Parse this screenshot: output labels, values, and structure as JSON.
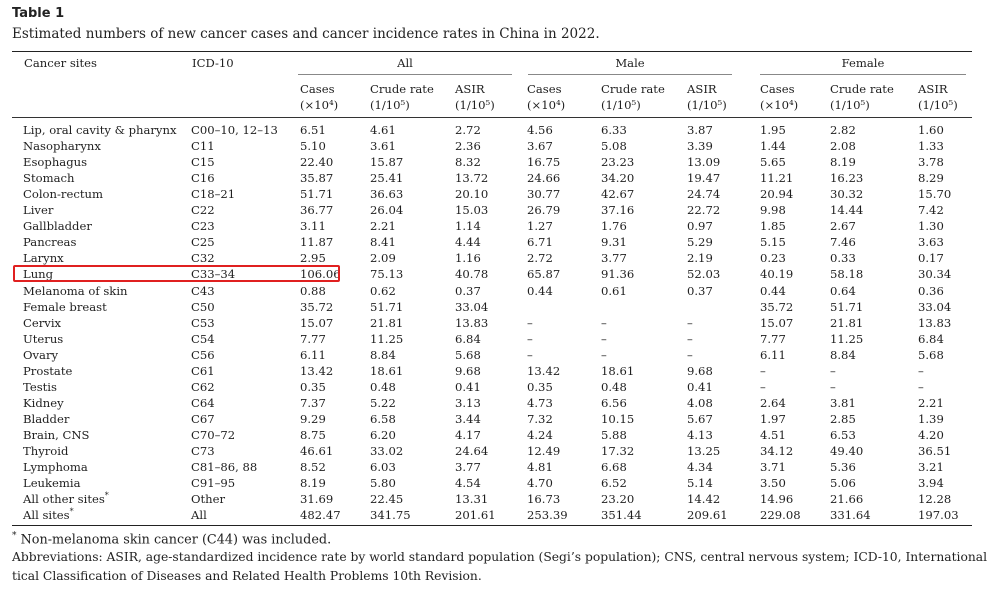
{
  "caption": {
    "label": "Table 1",
    "title": "Estimated numbers of new cancer cases and cancer incidence rates in China in 2022."
  },
  "header": {
    "sites": "Cancer sites",
    "icd": "ICD-10",
    "groups": [
      "All",
      "Male",
      "Female"
    ],
    "sub": [
      {
        "l1": "Cases",
        "l2": "(×10⁴)"
      },
      {
        "l1": "Crude rate",
        "l2": "(1/10⁵)"
      },
      {
        "l1": "ASIR",
        "l2": "(1/10⁵)"
      }
    ]
  },
  "rows": [
    {
      "site": "Lip, oral cavity & pharynx",
      "icd": "C00–10, 12–13",
      "v": [
        "6.51",
        "4.61",
        "2.72",
        "4.56",
        "6.33",
        "3.87",
        "1.95",
        "2.82",
        "1.60"
      ]
    },
    {
      "site": "Nasopharynx",
      "icd": "C11",
      "v": [
        "5.10",
        "3.61",
        "2.36",
        "3.67",
        "5.08",
        "3.39",
        "1.44",
        "2.08",
        "1.33"
      ]
    },
    {
      "site": "Esophagus",
      "icd": "C15",
      "v": [
        "22.40",
        "15.87",
        "8.32",
        "16.75",
        "23.23",
        "13.09",
        "5.65",
        "8.19",
        "3.78"
      ]
    },
    {
      "site": "Stomach",
      "icd": "C16",
      "v": [
        "35.87",
        "25.41",
        "13.72",
        "24.66",
        "34.20",
        "19.47",
        "11.21",
        "16.23",
        "8.29"
      ]
    },
    {
      "site": "Colon-rectum",
      "icd": "C18–21",
      "v": [
        "51.71",
        "36.63",
        "20.10",
        "30.77",
        "42.67",
        "24.74",
        "20.94",
        "30.32",
        "15.70"
      ]
    },
    {
      "site": "Liver",
      "icd": "C22",
      "v": [
        "36.77",
        "26.04",
        "15.03",
        "26.79",
        "37.16",
        "22.72",
        "9.98",
        "14.44",
        "7.42"
      ]
    },
    {
      "site": "Gallbladder",
      "icd": "C23",
      "v": [
        "3.11",
        "2.21",
        "1.14",
        "1.27",
        "1.76",
        "0.97",
        "1.85",
        "2.67",
        "1.30"
      ]
    },
    {
      "site": "Pancreas",
      "icd": "C25",
      "v": [
        "11.87",
        "8.41",
        "4.44",
        "6.71",
        "9.31",
        "5.29",
        "5.15",
        "7.46",
        "3.63"
      ]
    },
    {
      "site": "Larynx",
      "icd": "C32",
      "v": [
        "2.95",
        "2.09",
        "1.16",
        "2.72",
        "3.77",
        "2.19",
        "0.23",
        "0.33",
        "0.17"
      ]
    },
    {
      "site": "Lung",
      "icd": "C33–34",
      "v": [
        "106.06",
        "75.13",
        "40.78",
        "65.87",
        "91.36",
        "52.03",
        "40.19",
        "58.18",
        "30.34"
      ]
    },
    {
      "site": "Melanoma of skin",
      "icd": "C43",
      "v": [
        "0.88",
        "0.62",
        "0.37",
        "0.44",
        "0.61",
        "0.37",
        "0.44",
        "0.64",
        "0.36"
      ]
    },
    {
      "site": "Female breast",
      "icd": "C50",
      "v": [
        "35.72",
        "51.71",
        "33.04",
        "",
        "",
        "",
        "35.72",
        "51.71",
        "33.04"
      ]
    },
    {
      "site": "Cervix",
      "icd": "C53",
      "v": [
        "15.07",
        "21.81",
        "13.83",
        "–",
        "–",
        "–",
        "15.07",
        "21.81",
        "13.83"
      ]
    },
    {
      "site": "Uterus",
      "icd": "C54",
      "v": [
        "7.77",
        "11.25",
        "6.84",
        "–",
        "–",
        "–",
        "7.77",
        "11.25",
        "6.84"
      ]
    },
    {
      "site": "Ovary",
      "icd": "C56",
      "v": [
        "6.11",
        "8.84",
        "5.68",
        "–",
        "–",
        "–",
        "6.11",
        "8.84",
        "5.68"
      ]
    },
    {
      "site": "Prostate",
      "icd": "C61",
      "v": [
        "13.42",
        "18.61",
        "9.68",
        "13.42",
        "18.61",
        "9.68",
        "–",
        "–",
        "–"
      ]
    },
    {
      "site": "Testis",
      "icd": "C62",
      "v": [
        "0.35",
        "0.48",
        "0.41",
        "0.35",
        "0.48",
        "0.41",
        "–",
        "–",
        "–"
      ]
    },
    {
      "site": "Kidney",
      "icd": "C64",
      "v": [
        "7.37",
        "5.22",
        "3.13",
        "4.73",
        "6.56",
        "4.08",
        "2.64",
        "3.81",
        "2.21"
      ]
    },
    {
      "site": "Bladder",
      "icd": "C67",
      "v": [
        "9.29",
        "6.58",
        "3.44",
        "7.32",
        "10.15",
        "5.67",
        "1.97",
        "2.85",
        "1.39"
      ]
    },
    {
      "site": "Brain, CNS",
      "icd": "C70–72",
      "v": [
        "8.75",
        "6.20",
        "4.17",
        "4.24",
        "5.88",
        "4.13",
        "4.51",
        "6.53",
        "4.20"
      ]
    },
    {
      "site": "Thyroid",
      "icd": "C73",
      "v": [
        "46.61",
        "33.02",
        "24.64",
        "12.49",
        "17.32",
        "13.25",
        "34.12",
        "49.40",
        "36.51"
      ]
    },
    {
      "site": "Lymphoma",
      "icd": "C81–86, 88",
      "v": [
        "8.52",
        "6.03",
        "3.77",
        "4.81",
        "6.68",
        "4.34",
        "3.71",
        "5.36",
        "3.21"
      ]
    },
    {
      "site": "Leukemia",
      "icd": "C91–95",
      "v": [
        "8.19",
        "5.80",
        "4.54",
        "4.70",
        "6.52",
        "5.14",
        "3.50",
        "5.06",
        "3.94"
      ]
    },
    {
      "site": "All other sites",
      "mark": "*",
      "icd": "Other",
      "v": [
        "31.69",
        "22.45",
        "13.31",
        "16.73",
        "23.20",
        "14.42",
        "14.96",
        "21.66",
        "12.28"
      ]
    },
    {
      "site": "All sites",
      "mark": "*",
      "icd": "All",
      "v": [
        "482.47",
        "341.75",
        "201.61",
        "253.39",
        "351.44",
        "209.61",
        "229.08",
        "331.64",
        "197.03"
      ]
    }
  ],
  "highlight_row": "Lung",
  "footnotes": {
    "mark": "*",
    "note": "Non-melanoma skin cancer (C44) was included.",
    "abbr1": "Abbreviations: ASIR, age-standardized incidence rate by world standard population (Segi’s population); CNS, central nervous system; ICD-10, International Statis-",
    "abbr2": "tical Classification of Diseases and Related Health Problems 10th Revision."
  },
  "colors": {
    "highlight": "#e02020",
    "rule": "#222222"
  }
}
